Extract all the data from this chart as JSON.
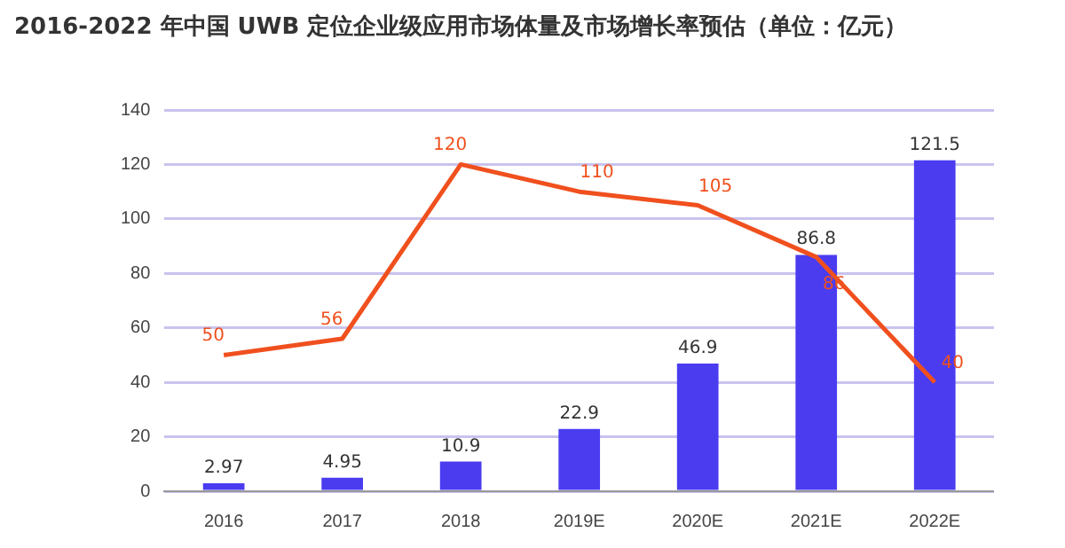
{
  "chart_data": {
    "type": "bar",
    "title": "2016-2022 年中国 UWB 定位企业级应用市场体量及市场增长率预估（单位：亿元）",
    "categories": [
      "2016",
      "2017",
      "2018",
      "2019E",
      "2020E",
      "2021E",
      "2022E"
    ],
    "series": [
      {
        "color": "#4b3cf0",
        "values": [
          2.97,
          4.95,
          10.9,
          22.9,
          46.9,
          86.8,
          121.5
        ]
      },
      {
        "type": "line",
        "color": "#f0501e",
        "values": [
          50,
          56,
          120,
          110,
          105,
          86,
          40
        ]
      }
    ],
    "ylim": [
      0,
      140
    ],
    "yticks": [
      0,
      20,
      40,
      60,
      80,
      100,
      120,
      140
    ],
    "grid": "y",
    "legend": false,
    "marker": "none",
    "data_labels": true
  }
}
